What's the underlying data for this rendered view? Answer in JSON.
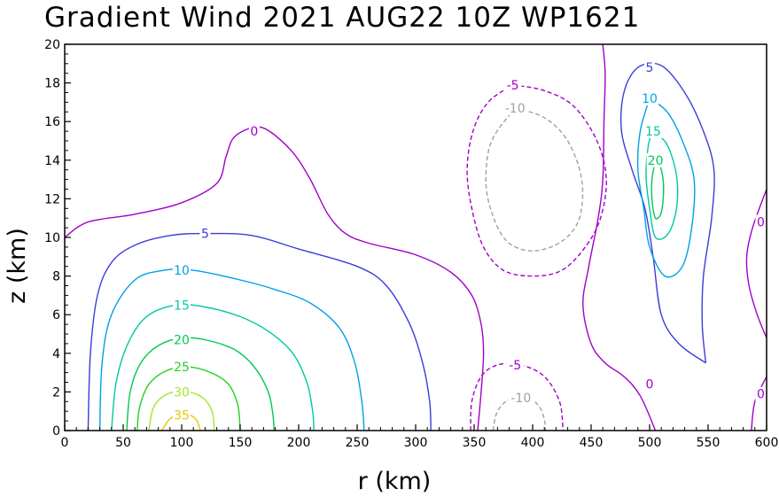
{
  "chart_data": {
    "type": "contour",
    "title": "Gradient Wind 2021 AUG22 10Z  WP1621",
    "xlabel": "r (km)",
    "ylabel": "z (km)",
    "xlim": [
      0,
      600
    ],
    "ylim": [
      0,
      20
    ],
    "xticks": [
      "0",
      "50",
      "100",
      "150",
      "200",
      "250",
      "300",
      "350",
      "400",
      "450",
      "500",
      "550",
      "600"
    ],
    "yticks": [
      "0",
      "2",
      "4",
      "6",
      "8",
      "10",
      "12",
      "14",
      "16",
      "18",
      "20"
    ],
    "contour_interval": 5,
    "negative_style": "dashed",
    "level_colors": {
      "-10": "#a0a0a0",
      "-5": "#a000c8",
      "0": "#a000c8",
      "5": "#3c3cdc",
      "10": "#00a0e6",
      "15": "#00c8a0",
      "20": "#00c850",
      "25": "#1ed21e",
      "30": "#a0e632",
      "35": "#e6c800"
    },
    "contours": [
      {
        "level": 0,
        "label": "0",
        "label_at": [
          162,
          15.5
        ],
        "points": [
          [
            0,
            10.0
          ],
          [
            20,
            10.8
          ],
          [
            60,
            11.2
          ],
          [
            100,
            11.8
          ],
          [
            130,
            12.8
          ],
          [
            138,
            14.2
          ],
          [
            145,
            15.2
          ],
          [
            162,
            15.7
          ],
          [
            175,
            15.5
          ],
          [
            195,
            14.4
          ],
          [
            210,
            13.0
          ],
          [
            225,
            11.2
          ],
          [
            240,
            10.2
          ],
          [
            260,
            9.7
          ],
          [
            300,
            9.1
          ],
          [
            330,
            8.2
          ],
          [
            348,
            7.0
          ],
          [
            356,
            5.5
          ],
          [
            358,
            4.0
          ],
          [
            356,
            2.0
          ],
          [
            353,
            0.0
          ]
        ]
      },
      {
        "level": 0,
        "label": "0",
        "label_at": [
          500,
          2.4
        ],
        "points": [
          [
            460,
            20.0
          ],
          [
            462,
            18.5
          ],
          [
            461,
            16.0
          ],
          [
            460,
            13.0
          ],
          [
            456,
            11.0
          ],
          [
            448,
            8.5
          ],
          [
            443,
            6.5
          ],
          [
            450,
            4.5
          ],
          [
            462,
            3.5
          ],
          [
            478,
            2.8
          ],
          [
            492,
            1.8
          ],
          [
            505,
            0.0
          ]
        ]
      },
      {
        "level": 0,
        "label": "0",
        "label_at": [
          595,
          10.8
        ],
        "points": [
          [
            600,
            4.8
          ],
          [
            592,
            6.0
          ],
          [
            585,
            7.5
          ],
          [
            583,
            9.0
          ],
          [
            588,
            10.5
          ],
          [
            600,
            12.5
          ]
        ]
      },
      {
        "level": 0,
        "label": "0",
        "label_at": [
          595,
          1.9
        ],
        "points": [
          [
            600,
            2.8
          ],
          [
            590,
            1.5
          ],
          [
            587,
            0.0
          ]
        ]
      },
      {
        "level": 5,
        "label": "5",
        "label_at": [
          120,
          10.2
        ],
        "points": [
          [
            20,
            0.0
          ],
          [
            22,
            4.0
          ],
          [
            28,
            7.0
          ],
          [
            40,
            8.7
          ],
          [
            60,
            9.6
          ],
          [
            90,
            10.1
          ],
          [
            120,
            10.2
          ],
          [
            160,
            10.1
          ],
          [
            200,
            9.4
          ],
          [
            250,
            8.5
          ],
          [
            275,
            7.5
          ],
          [
            295,
            5.5
          ],
          [
            306,
            3.5
          ],
          [
            312,
            1.5
          ],
          [
            313,
            0.0
          ]
        ]
      },
      {
        "level": 10,
        "label": "10",
        "label_at": [
          100,
          8.3
        ],
        "points": [
          [
            30,
            0.0
          ],
          [
            32,
            3.5
          ],
          [
            40,
            6.0
          ],
          [
            60,
            7.8
          ],
          [
            85,
            8.3
          ],
          [
            110,
            8.3
          ],
          [
            150,
            7.8
          ],
          [
            180,
            7.3
          ],
          [
            210,
            6.6
          ],
          [
            235,
            5.3
          ],
          [
            248,
            3.5
          ],
          [
            254,
            1.5
          ],
          [
            256,
            0.0
          ]
        ]
      },
      {
        "level": 15,
        "label": "15",
        "label_at": [
          100,
          6.5
        ],
        "points": [
          [
            40,
            0.0
          ],
          [
            44,
            2.5
          ],
          [
            54,
            4.5
          ],
          [
            70,
            5.9
          ],
          [
            95,
            6.5
          ],
          [
            120,
            6.4
          ],
          [
            150,
            5.9
          ],
          [
            175,
            5.1
          ],
          [
            195,
            4.0
          ],
          [
            207,
            2.5
          ],
          [
            212,
            1.0
          ],
          [
            213,
            0.0
          ]
        ]
      },
      {
        "level": 20,
        "label": "20",
        "label_at": [
          100,
          4.7
        ],
        "points": [
          [
            53,
            0.0
          ],
          [
            56,
            2.0
          ],
          [
            65,
            3.5
          ],
          [
            80,
            4.4
          ],
          [
            100,
            4.8
          ],
          [
            120,
            4.7
          ],
          [
            145,
            4.2
          ],
          [
            162,
            3.3
          ],
          [
            174,
            2.0
          ],
          [
            178,
            0.8
          ],
          [
            179,
            0.0
          ]
        ]
      },
      {
        "level": 25,
        "label": "25",
        "label_at": [
          100,
          3.3
        ],
        "points": [
          [
            62,
            0.0
          ],
          [
            64,
            1.2
          ],
          [
            72,
            2.4
          ],
          [
            87,
            3.1
          ],
          [
            105,
            3.3
          ],
          [
            125,
            3.0
          ],
          [
            140,
            2.4
          ],
          [
            148,
            1.3
          ],
          [
            150,
            0.0
          ]
        ]
      },
      {
        "level": 30,
        "label": "30",
        "label_at": [
          100,
          2.0
        ],
        "points": [
          [
            72,
            0.0
          ],
          [
            76,
            1.2
          ],
          [
            88,
            1.9
          ],
          [
            105,
            2.0
          ],
          [
            118,
            1.7
          ],
          [
            126,
            1.0
          ],
          [
            128,
            0.0
          ]
        ]
      },
      {
        "level": 35,
        "label": "35",
        "label_at": [
          100,
          0.8
        ],
        "points": [
          [
            83,
            0.0
          ],
          [
            90,
            0.6
          ],
          [
            102,
            0.9
          ],
          [
            112,
            0.6
          ],
          [
            116,
            0.0
          ]
        ]
      },
      {
        "level": -5,
        "label": "-5",
        "label_at": [
          383,
          17.9
        ],
        "points": [
          [
            383,
            17.9
          ],
          [
            410,
            17.6
          ],
          [
            435,
            16.8
          ],
          [
            455,
            15.0
          ],
          [
            463,
            13.0
          ],
          [
            458,
            11.0
          ],
          [
            445,
            9.5
          ],
          [
            425,
            8.3
          ],
          [
            400,
            8.0
          ],
          [
            375,
            8.3
          ],
          [
            358,
            9.5
          ],
          [
            348,
            11.5
          ],
          [
            344,
            13.5
          ],
          [
            349,
            15.5
          ],
          [
            362,
            17.0
          ],
          [
            383,
            17.9
          ]
        ]
      },
      {
        "level": -10,
        "label": "-10",
        "label_at": [
          385,
          16.7
        ],
        "points": [
          [
            385,
            16.7
          ],
          [
            410,
            16.2
          ],
          [
            430,
            15.0
          ],
          [
            442,
            13.0
          ],
          [
            440,
            11.0
          ],
          [
            425,
            9.8
          ],
          [
            400,
            9.3
          ],
          [
            378,
            9.8
          ],
          [
            365,
            11.3
          ],
          [
            360,
            13.0
          ],
          [
            365,
            15.0
          ],
          [
            385,
            16.7
          ]
        ]
      },
      {
        "level": -5,
        "label": "-5",
        "label_at": [
          385,
          3.4
        ],
        "points": [
          [
            347,
            0.0
          ],
          [
            348,
            1.5
          ],
          [
            356,
            2.8
          ],
          [
            370,
            3.4
          ],
          [
            390,
            3.4
          ],
          [
            410,
            2.8
          ],
          [
            423,
            1.5
          ],
          [
            426,
            0.0
          ]
        ]
      },
      {
        "level": -10,
        "label": "-10",
        "label_at": [
          390,
          1.7
        ],
        "points": [
          [
            366,
            0.0
          ],
          [
            370,
            1.0
          ],
          [
            380,
            1.6
          ],
          [
            395,
            1.7
          ],
          [
            405,
            1.3
          ],
          [
            410,
            0.6
          ],
          [
            411,
            0.0
          ]
        ]
      },
      {
        "level": 5,
        "label": "5",
        "label_at": [
          500,
          18.8
        ],
        "points": [
          [
            548,
            3.5
          ],
          [
            525,
            4.5
          ],
          [
            510,
            6.0
          ],
          [
            503,
            9.0
          ],
          [
            496,
            11.5
          ],
          [
            485,
            13.5
          ],
          [
            476,
            15.5
          ],
          [
            478,
            17.5
          ],
          [
            490,
            18.8
          ],
          [
            510,
            18.9
          ],
          [
            530,
            17.5
          ],
          [
            546,
            15.5
          ],
          [
            555,
            13.5
          ],
          [
            553,
            11.0
          ],
          [
            546,
            8.0
          ],
          [
            545,
            5.5
          ],
          [
            548,
            3.5
          ]
        ]
      },
      {
        "level": 10,
        "label": "10",
        "label_at": [
          500,
          17.2
        ],
        "points": [
          [
            500,
            17.2
          ],
          [
            515,
            16.5
          ],
          [
            528,
            15.0
          ],
          [
            538,
            13.0
          ],
          [
            536,
            10.5
          ],
          [
            528,
            8.5
          ],
          [
            513,
            8.0
          ],
          [
            500,
            9.5
          ],
          [
            495,
            11.5
          ],
          [
            490,
            13.5
          ],
          [
            492,
            15.5
          ],
          [
            500,
            17.2
          ]
        ]
      },
      {
        "level": 15,
        "label": "15",
        "label_at": [
          503,
          15.5
        ],
        "points": [
          [
            503,
            15.5
          ],
          [
            515,
            14.8
          ],
          [
            523,
            13.2
          ],
          [
            523,
            11.5
          ],
          [
            516,
            10.2
          ],
          [
            505,
            10.0
          ],
          [
            500,
            11.5
          ],
          [
            497,
            13.2
          ],
          [
            499,
            14.8
          ],
          [
            503,
            15.5
          ]
        ]
      },
      {
        "level": 20,
        "label": "20",
        "label_at": [
          505,
          14.0
        ],
        "points": [
          [
            505,
            14.0
          ],
          [
            510,
            13.5
          ],
          [
            512,
            12.5
          ],
          [
            510,
            11.3
          ],
          [
            505,
            11.0
          ],
          [
            502,
            12.0
          ],
          [
            502,
            13.0
          ],
          [
            505,
            14.0
          ]
        ]
      }
    ]
  }
}
